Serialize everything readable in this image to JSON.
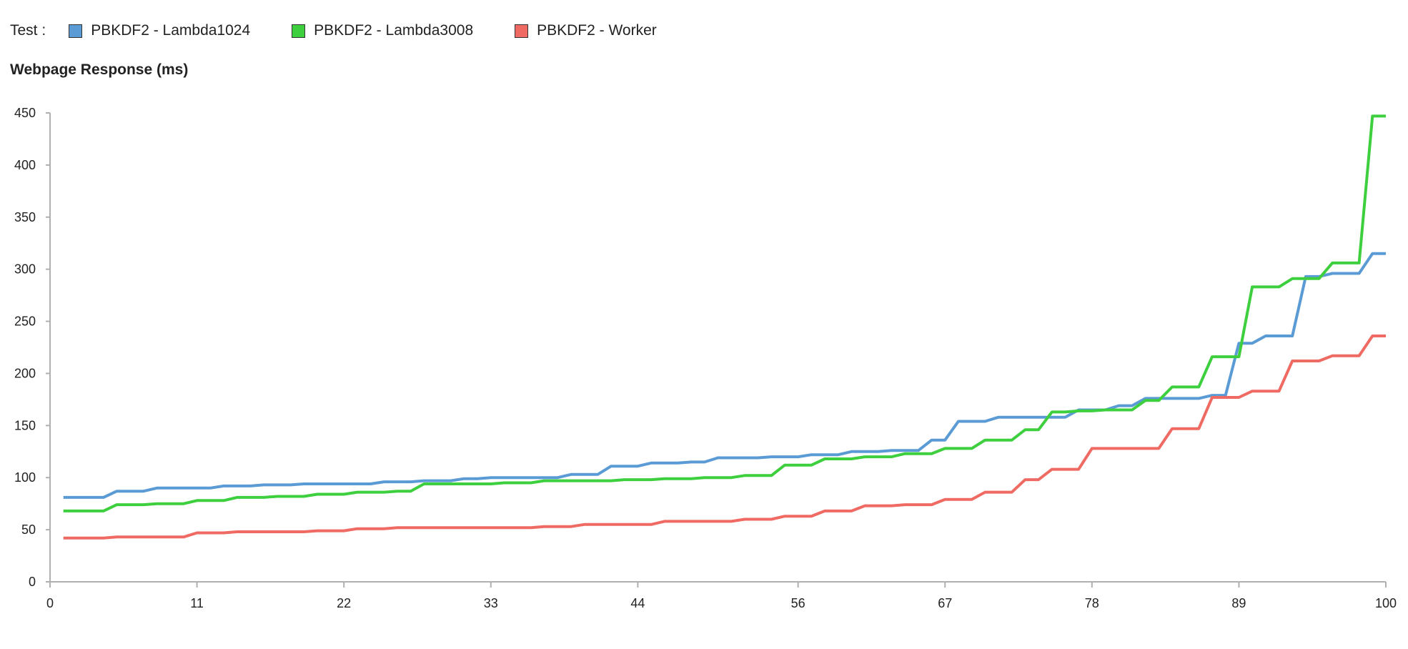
{
  "legend": {
    "prefix": "Test :",
    "items": [
      {
        "label": "PBKDF2 - Lambda1024",
        "color": "#5b9bd5"
      },
      {
        "label": "PBKDF2 - Lambda3008",
        "color": "#3ecf3e"
      },
      {
        "label": "PBKDF2 - Worker",
        "color": "#ef6a62"
      }
    ]
  },
  "chart_data": {
    "type": "line",
    "title": "Webpage Response (ms)",
    "xlabel": "",
    "ylabel": "",
    "xlim": [
      0,
      100
    ],
    "ylim": [
      0,
      450
    ],
    "x_ticks": [
      0,
      11,
      22,
      33,
      44,
      56,
      67,
      78,
      89,
      100
    ],
    "y_ticks": [
      0,
      50,
      100,
      150,
      200,
      250,
      300,
      350,
      400,
      450
    ],
    "grid": false,
    "legend_position": "top-left",
    "series": [
      {
        "name": "PBKDF2 - Lambda1024",
        "color": "#5b9bd5",
        "points": [
          [
            1,
            81
          ],
          [
            4,
            81
          ],
          [
            5,
            87
          ],
          [
            7,
            87
          ],
          [
            8,
            90
          ],
          [
            12,
            90
          ],
          [
            13,
            92
          ],
          [
            15,
            92
          ],
          [
            16,
            93
          ],
          [
            18,
            93
          ],
          [
            19,
            94
          ],
          [
            24,
            94
          ],
          [
            25,
            96
          ],
          [
            27,
            96
          ],
          [
            28,
            97
          ],
          [
            30,
            97
          ],
          [
            31,
            99
          ],
          [
            32,
            99
          ],
          [
            33,
            100
          ],
          [
            38,
            100
          ],
          [
            39,
            103
          ],
          [
            41,
            103
          ],
          [
            42,
            111
          ],
          [
            44,
            111
          ],
          [
            45,
            114
          ],
          [
            47,
            114
          ],
          [
            48,
            115
          ],
          [
            49,
            115
          ],
          [
            50,
            119
          ],
          [
            53,
            119
          ],
          [
            54,
            120
          ],
          [
            56,
            120
          ],
          [
            57,
            122
          ],
          [
            59,
            122
          ],
          [
            60,
            125
          ],
          [
            62,
            125
          ],
          [
            63,
            126
          ],
          [
            65,
            126
          ],
          [
            66,
            136
          ],
          [
            67,
            136
          ],
          [
            68,
            154
          ],
          [
            70,
            154
          ],
          [
            71,
            158
          ],
          [
            76,
            158
          ],
          [
            77,
            165
          ],
          [
            79,
            165
          ],
          [
            80,
            169
          ],
          [
            81,
            169
          ],
          [
            82,
            176
          ],
          [
            86,
            176
          ],
          [
            87,
            179
          ],
          [
            88,
            179
          ],
          [
            89,
            229
          ],
          [
            90,
            229
          ],
          [
            91,
            236
          ],
          [
            93,
            236
          ],
          [
            94,
            293
          ],
          [
            95,
            293
          ],
          [
            96,
            296
          ],
          [
            98,
            296
          ],
          [
            99,
            315
          ],
          [
            100,
            315
          ]
        ]
      },
      {
        "name": "PBKDF2 - Lambda3008",
        "color": "#3ecf3e",
        "points": [
          [
            1,
            68
          ],
          [
            4,
            68
          ],
          [
            5,
            74
          ],
          [
            7,
            74
          ],
          [
            8,
            75
          ],
          [
            10,
            75
          ],
          [
            11,
            78
          ],
          [
            13,
            78
          ],
          [
            14,
            81
          ],
          [
            16,
            81
          ],
          [
            17,
            82
          ],
          [
            19,
            82
          ],
          [
            20,
            84
          ],
          [
            22,
            84
          ],
          [
            23,
            86
          ],
          [
            25,
            86
          ],
          [
            26,
            87
          ],
          [
            27,
            87
          ],
          [
            28,
            94
          ],
          [
            33,
            94
          ],
          [
            34,
            95
          ],
          [
            36,
            95
          ],
          [
            37,
            97
          ],
          [
            42,
            97
          ],
          [
            43,
            98
          ],
          [
            45,
            98
          ],
          [
            46,
            99
          ],
          [
            48,
            99
          ],
          [
            49,
            100
          ],
          [
            51,
            100
          ],
          [
            52,
            102
          ],
          [
            54,
            102
          ],
          [
            55,
            112
          ],
          [
            57,
            112
          ],
          [
            58,
            118
          ],
          [
            60,
            118
          ],
          [
            61,
            120
          ],
          [
            63,
            120
          ],
          [
            64,
            123
          ],
          [
            66,
            123
          ],
          [
            67,
            128
          ],
          [
            69,
            128
          ],
          [
            70,
            136
          ],
          [
            72,
            136
          ],
          [
            73,
            146
          ],
          [
            74,
            146
          ],
          [
            75,
            163
          ],
          [
            76,
            163
          ],
          [
            77,
            164
          ],
          [
            78,
            164
          ],
          [
            79,
            165
          ],
          [
            81,
            165
          ],
          [
            82,
            174
          ],
          [
            83,
            174
          ],
          [
            84,
            187
          ],
          [
            86,
            187
          ],
          [
            87,
            216
          ],
          [
            89,
            216
          ],
          [
            90,
            283
          ],
          [
            92,
            283
          ],
          [
            93,
            291
          ],
          [
            95,
            291
          ],
          [
            96,
            306
          ],
          [
            98,
            306
          ],
          [
            99,
            447
          ],
          [
            100,
            447
          ]
        ]
      },
      {
        "name": "PBKDF2 - Worker",
        "color": "#ef6a62",
        "points": [
          [
            1,
            42
          ],
          [
            4,
            42
          ],
          [
            5,
            43
          ],
          [
            10,
            43
          ],
          [
            11,
            47
          ],
          [
            13,
            47
          ],
          [
            14,
            48
          ],
          [
            19,
            48
          ],
          [
            20,
            49
          ],
          [
            22,
            49
          ],
          [
            23,
            51
          ],
          [
            25,
            51
          ],
          [
            26,
            52
          ],
          [
            36,
            52
          ],
          [
            37,
            53
          ],
          [
            39,
            53
          ],
          [
            40,
            55
          ],
          [
            45,
            55
          ],
          [
            46,
            58
          ],
          [
            51,
            58
          ],
          [
            52,
            60
          ],
          [
            54,
            60
          ],
          [
            55,
            63
          ],
          [
            57,
            63
          ],
          [
            58,
            68
          ],
          [
            60,
            68
          ],
          [
            61,
            73
          ],
          [
            63,
            73
          ],
          [
            64,
            74
          ],
          [
            66,
            74
          ],
          [
            67,
            79
          ],
          [
            69,
            79
          ],
          [
            70,
            86
          ],
          [
            72,
            86
          ],
          [
            73,
            98
          ],
          [
            74,
            98
          ],
          [
            75,
            108
          ],
          [
            77,
            108
          ],
          [
            78,
            128
          ],
          [
            83,
            128
          ],
          [
            84,
            147
          ],
          [
            86,
            147
          ],
          [
            87,
            177
          ],
          [
            89,
            177
          ],
          [
            90,
            183
          ],
          [
            92,
            183
          ],
          [
            93,
            212
          ],
          [
            95,
            212
          ],
          [
            96,
            217
          ],
          [
            98,
            217
          ],
          [
            99,
            236
          ],
          [
            100,
            236
          ]
        ]
      }
    ]
  }
}
